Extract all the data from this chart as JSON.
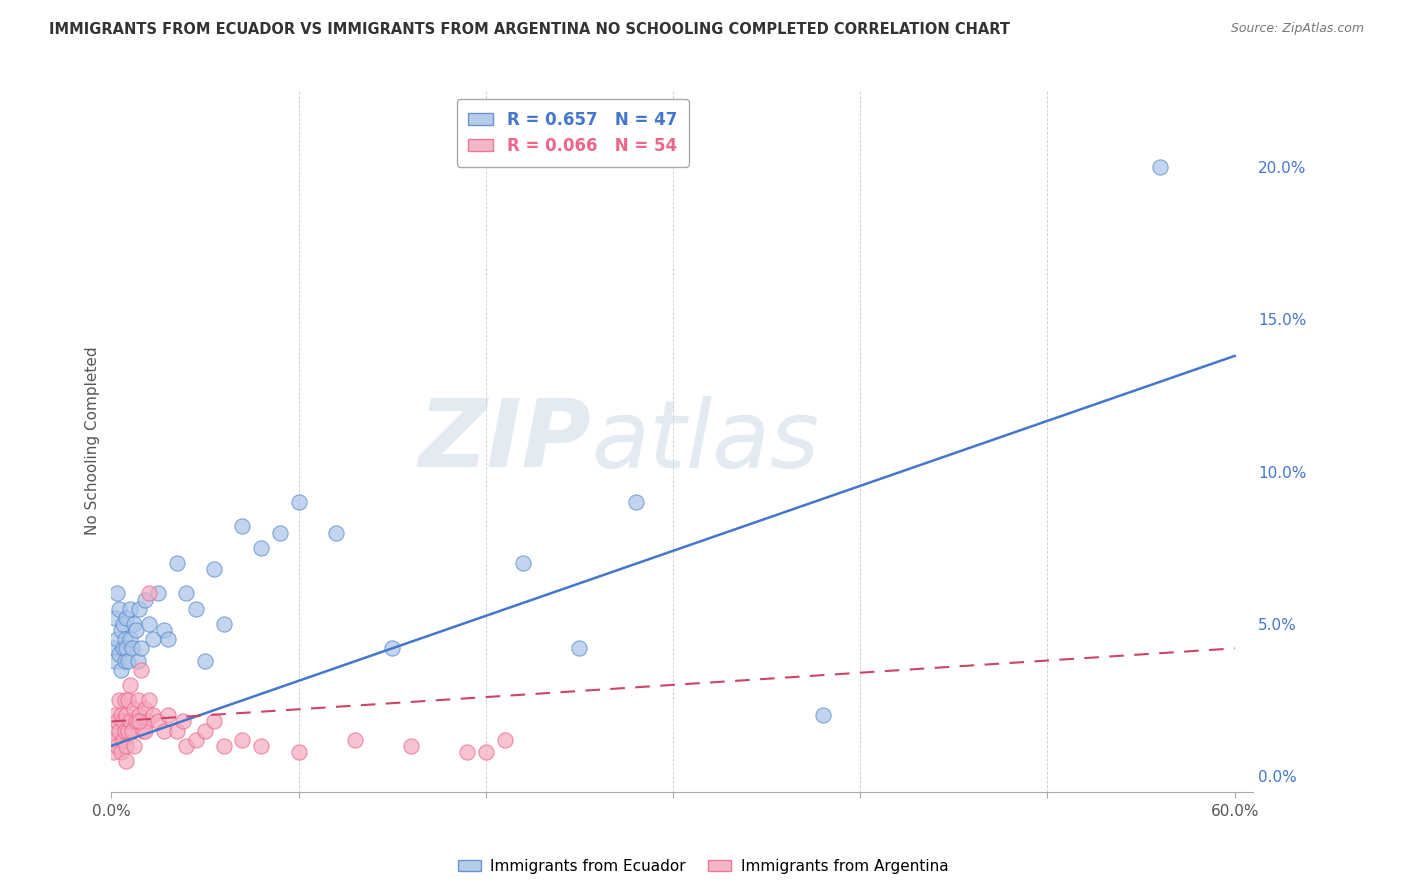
{
  "title": "IMMIGRANTS FROM ECUADOR VS IMMIGRANTS FROM ARGENTINA NO SCHOOLING COMPLETED CORRELATION CHART",
  "source": "Source: ZipAtlas.com",
  "ylabel": "No Schooling Completed",
  "legend_label_1": "Immigrants from Ecuador",
  "legend_label_2": "Immigrants from Argentina",
  "r1": 0.657,
  "n1": 47,
  "r2": 0.066,
  "n2": 54,
  "color1": "#aac4e8",
  "color2": "#f4aac0",
  "color1_edge": "#5588cc",
  "color2_edge": "#ee6688",
  "color1_line": "#4477cc",
  "color2_line": "#cc4466",
  "color1_text": "#4477cc",
  "color2_text": "#ee6688",
  "xlim": [
    0.0,
    0.61
  ],
  "ylim": [
    -0.005,
    0.225
  ],
  "yticks_right": [
    0.0,
    0.05,
    0.1,
    0.15,
    0.2
  ],
  "watermark_zip": "ZIP",
  "watermark_atlas": "atlas",
  "blue_line": [
    [
      0.0,
      0.01
    ],
    [
      0.6,
      0.138
    ]
  ],
  "pink_line": [
    [
      0.0,
      0.018
    ],
    [
      0.6,
      0.042
    ]
  ],
  "ecuador_x": [
    0.001,
    0.002,
    0.002,
    0.003,
    0.003,
    0.004,
    0.004,
    0.005,
    0.005,
    0.006,
    0.006,
    0.007,
    0.007,
    0.008,
    0.008,
    0.009,
    0.01,
    0.01,
    0.011,
    0.012,
    0.013,
    0.014,
    0.015,
    0.016,
    0.018,
    0.02,
    0.022,
    0.025,
    0.028,
    0.03,
    0.035,
    0.04,
    0.045,
    0.05,
    0.055,
    0.06,
    0.07,
    0.08,
    0.09,
    0.1,
    0.12,
    0.15,
    0.22,
    0.28,
    0.56,
    0.25,
    0.38
  ],
  "ecuador_y": [
    0.042,
    0.038,
    0.052,
    0.045,
    0.06,
    0.04,
    0.055,
    0.035,
    0.048,
    0.042,
    0.05,
    0.038,
    0.045,
    0.052,
    0.042,
    0.038,
    0.045,
    0.055,
    0.042,
    0.05,
    0.048,
    0.038,
    0.055,
    0.042,
    0.058,
    0.05,
    0.045,
    0.06,
    0.048,
    0.045,
    0.07,
    0.06,
    0.055,
    0.038,
    0.068,
    0.05,
    0.082,
    0.075,
    0.08,
    0.09,
    0.08,
    0.042,
    0.07,
    0.09,
    0.2,
    0.042,
    0.02
  ],
  "argentina_x": [
    0.001,
    0.001,
    0.002,
    0.002,
    0.003,
    0.003,
    0.004,
    0.004,
    0.005,
    0.005,
    0.006,
    0.006,
    0.007,
    0.007,
    0.008,
    0.008,
    0.009,
    0.009,
    0.01,
    0.01,
    0.011,
    0.012,
    0.013,
    0.014,
    0.015,
    0.016,
    0.017,
    0.018,
    0.019,
    0.02,
    0.022,
    0.025,
    0.028,
    0.03,
    0.035,
    0.038,
    0.04,
    0.045,
    0.05,
    0.055,
    0.06,
    0.07,
    0.08,
    0.1,
    0.13,
    0.16,
    0.19,
    0.21,
    0.02,
    0.018,
    0.015,
    0.012,
    0.008,
    0.2
  ],
  "argentina_y": [
    0.008,
    0.015,
    0.012,
    0.02,
    0.018,
    0.01,
    0.015,
    0.025,
    0.02,
    0.008,
    0.018,
    0.012,
    0.025,
    0.015,
    0.02,
    0.01,
    0.015,
    0.025,
    0.018,
    0.03,
    0.015,
    0.022,
    0.018,
    0.025,
    0.02,
    0.035,
    0.015,
    0.022,
    0.018,
    0.025,
    0.02,
    0.018,
    0.015,
    0.02,
    0.015,
    0.018,
    0.01,
    0.012,
    0.015,
    0.018,
    0.01,
    0.012,
    0.01,
    0.008,
    0.012,
    0.01,
    0.008,
    0.012,
    0.06,
    0.015,
    0.018,
    0.01,
    0.005,
    0.008
  ]
}
